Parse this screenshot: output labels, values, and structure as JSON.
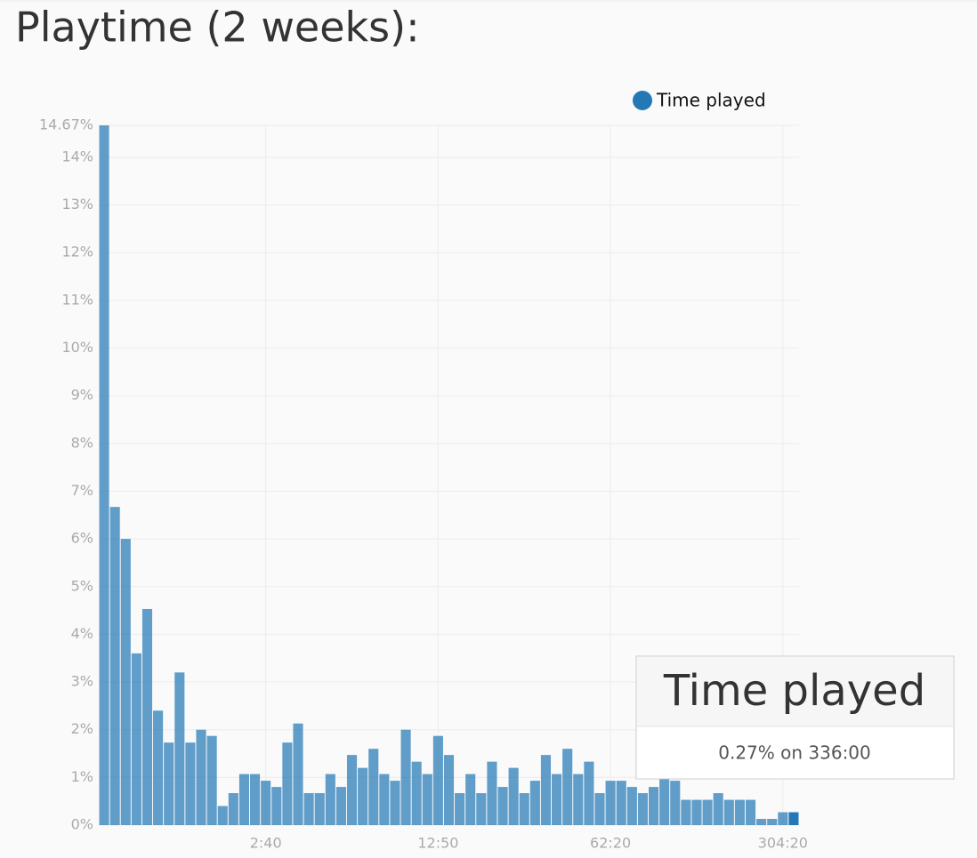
{
  "chart_data": {
    "type": "bar",
    "title": "Playtime (2 weeks):",
    "series": [
      {
        "name": "Time played",
        "color": "#2478b5",
        "values": [
          14.67,
          6.67,
          6.0,
          3.6,
          4.53,
          2.4,
          1.73,
          3.2,
          1.73,
          2.0,
          1.87,
          0.4,
          0.67,
          1.07,
          1.07,
          0.93,
          0.8,
          1.73,
          2.13,
          0.67,
          0.67,
          1.07,
          0.8,
          1.47,
          1.2,
          1.6,
          1.07,
          0.93,
          2.0,
          1.33,
          1.07,
          1.87,
          1.47,
          0.67,
          1.07,
          0.67,
          1.33,
          0.8,
          1.2,
          0.67,
          0.93,
          1.47,
          1.07,
          1.6,
          1.07,
          1.33,
          0.67,
          0.93,
          0.93,
          0.8,
          0.67,
          0.8,
          1.0,
          0.93,
          0.53,
          0.53,
          0.53,
          0.67,
          0.53,
          0.53,
          0.53,
          0.13,
          0.13,
          0.27,
          0.27
        ]
      }
    ],
    "categories": [
      null,
      null,
      null,
      null,
      null,
      null,
      null,
      null,
      null,
      null,
      null,
      null,
      null,
      null,
      null,
      "2:40",
      null,
      null,
      null,
      null,
      null,
      null,
      null,
      null,
      null,
      null,
      null,
      null,
      null,
      null,
      null,
      "12:50",
      null,
      null,
      null,
      null,
      null,
      null,
      null,
      null,
      null,
      null,
      null,
      null,
      null,
      null,
      null,
      "62:20",
      null,
      null,
      null,
      null,
      null,
      null,
      null,
      null,
      null,
      null,
      null,
      null,
      null,
      null,
      null,
      "304:20",
      null
    ],
    "ylim": [
      0,
      14.67
    ],
    "yticks": [
      {
        "value": 0,
        "label": "0%"
      },
      {
        "value": 1,
        "label": "1%"
      },
      {
        "value": 2,
        "label": "2%"
      },
      {
        "value": 3,
        "label": "3%"
      },
      {
        "value": 4,
        "label": "4%"
      },
      {
        "value": 5,
        "label": "5%"
      },
      {
        "value": 6,
        "label": "6%"
      },
      {
        "value": 7,
        "label": "7%"
      },
      {
        "value": 8,
        "label": "8%"
      },
      {
        "value": 9,
        "label": "9%"
      },
      {
        "value": 10,
        "label": "10%"
      },
      {
        "value": 11,
        "label": "11%"
      },
      {
        "value": 12,
        "label": "12%"
      },
      {
        "value": 13,
        "label": "13%"
      },
      {
        "value": 14,
        "label": "14%"
      },
      {
        "value": 14.67,
        "label": "14.67%"
      }
    ],
    "grid": true,
    "legend": "top",
    "tooltip": {
      "title": "Time played",
      "text": "0.27% on 336:00",
      "index": 64
    }
  }
}
